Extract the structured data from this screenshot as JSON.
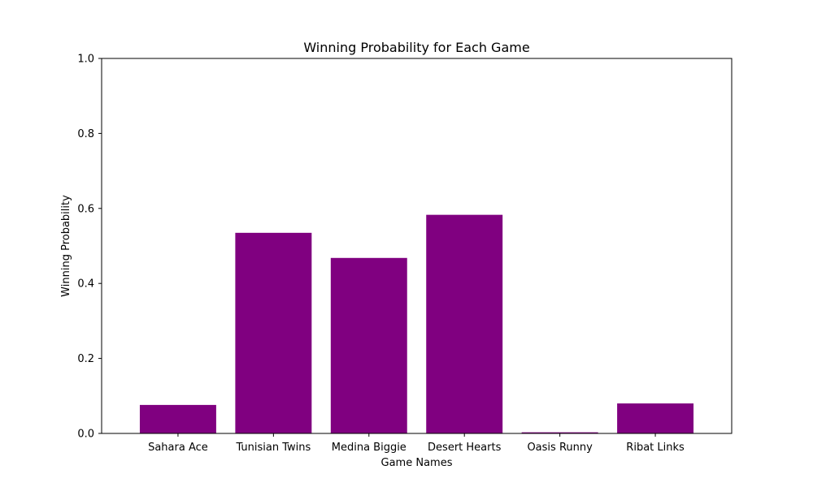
{
  "chart_data": {
    "type": "bar",
    "title": "Winning Probability for Each Game",
    "xlabel": "Game Names",
    "ylabel": "Winning Probability",
    "categories": [
      "Sahara Ace",
      "Tunisian Twins",
      "Medina Biggie",
      "Desert Hearts",
      "Oasis Runny",
      "Ribat Links"
    ],
    "values": [
      0.076,
      0.535,
      0.468,
      0.583,
      0.003,
      0.08
    ],
    "ylim": [
      0,
      1.0
    ],
    "yticks": [
      "0.0",
      "0.2",
      "0.4",
      "0.6",
      "0.8",
      "1.0"
    ],
    "grid": false,
    "bar_color": "#800080"
  }
}
